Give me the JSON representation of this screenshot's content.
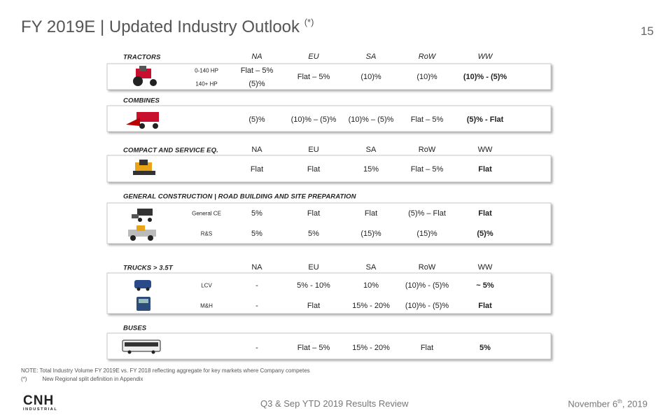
{
  "header": {
    "title": "FY 2019E | Updated Industry Outlook",
    "title_note": "(*)",
    "page_number": "15"
  },
  "sections": [
    {
      "label": "TRACTORS",
      "columns": [
        "NA",
        "EU",
        "SA",
        "RoW",
        "WW"
      ],
      "rows": [
        {
          "label": [
            "0-140 HP",
            "140+ HP"
          ],
          "cells": [
            [
              "Flat – 5%",
              "(5)%"
            ],
            "Flat – 5%",
            "(10)%",
            "(10)%",
            "(10)% - (5)%"
          ]
        }
      ]
    },
    {
      "label": "COMBINES",
      "rows": [
        {
          "cells": [
            "(5)%",
            "(10)% – (5)%",
            "(10)% – (5)%",
            "Flat – 5%",
            "(5)% - Flat"
          ]
        }
      ]
    },
    {
      "label": "COMPACT AND SERVICE EQ.",
      "columns": [
        "NA",
        "EU",
        "SA",
        "RoW",
        "WW"
      ],
      "rows": [
        {
          "cells": [
            "Flat",
            "Flat",
            "15%",
            "Flat – 5%",
            "Flat"
          ]
        }
      ]
    },
    {
      "label": "GENERAL CONSTRUCTION | ROAD BUILDING AND SITE PREPARATION",
      "rows": [
        {
          "label": "General  CE",
          "cells": [
            "5%",
            "Flat",
            "Flat",
            "(5)% – Flat",
            "Flat"
          ]
        },
        {
          "label": "R&S",
          "cells": [
            "5%",
            "5%",
            "(15)%",
            "(15)%",
            "(5)%"
          ]
        }
      ]
    },
    {
      "label": "TRUCKS > 3.5T",
      "columns": [
        "NA",
        "EU",
        "SA",
        "RoW",
        "WW"
      ],
      "rows": [
        {
          "label": "LCV",
          "cells": [
            "-",
            "5% - 10%",
            "10%",
            "(10)% - (5)%",
            "~ 5%"
          ]
        },
        {
          "label": "M&H",
          "cells": [
            "-",
            "Flat",
            "15% - 20%",
            "(10)% - (5)%",
            "Flat"
          ]
        }
      ]
    },
    {
      "label": "BUSES",
      "rows": [
        {
          "cells": [
            "-",
            "Flat – 5%",
            "15% - 20%",
            "Flat",
            "5%"
          ]
        }
      ]
    }
  ],
  "notes": {
    "note": "NOTE: Total Industry Volume FY 2019E vs. FY 2018 reflecting aggregate for key markets where Company competes",
    "footnote_mark": "(*)",
    "footnote": "New Regional split definition in Appendix"
  },
  "footer": {
    "logo": "CNH",
    "logo_sub": "INDUSTRIAL",
    "center": "Q3 & Sep YTD 2019 Results Review",
    "date_main": "November 6",
    "date_sup": "th",
    "date_end": ", 2019"
  }
}
